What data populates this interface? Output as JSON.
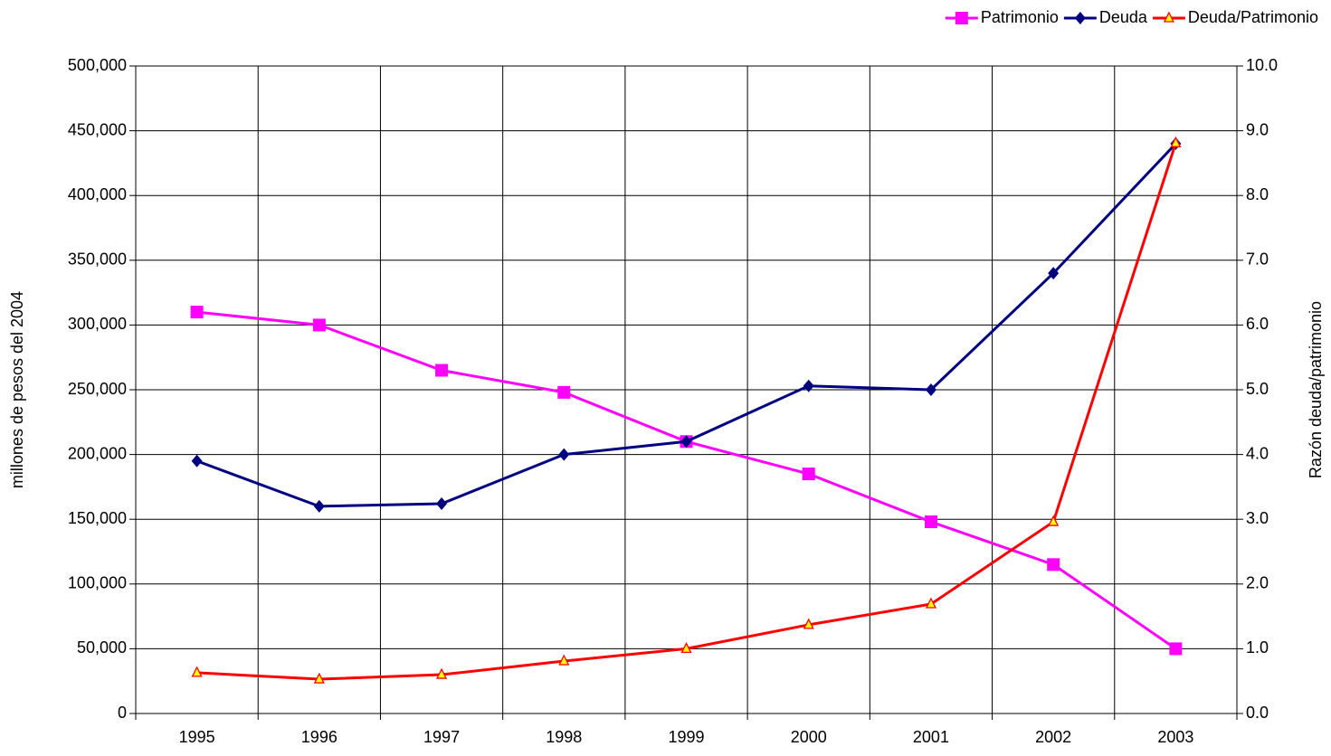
{
  "chart_data": {
    "type": "line",
    "categories": [
      "1995",
      "1996",
      "1997",
      "1998",
      "1999",
      "2000",
      "2001",
      "2002",
      "2003"
    ],
    "y_label": "millones de pesos del 2004",
    "y2_label": "Razón deuda/patrimonio",
    "ylim": [
      0,
      500000
    ],
    "yticks": [
      0,
      {
        "value": 50000,
        "label": "50,000"
      },
      {
        "value": 100000,
        "label": "100,000"
      },
      {
        "value": 150000,
        "label": "150,000"
      },
      {
        "value": 200000,
        "label": "200,000"
      },
      {
        "value": 250000,
        "label": "250,000"
      },
      {
        "value": 300000,
        "label": "300,000"
      },
      {
        "value": 350000,
        "label": "350,000"
      },
      {
        "value": 400000,
        "label": "400,000"
      },
      {
        "value": 450000,
        "label": "450,000"
      },
      {
        "value": 500000,
        "label": "500,000"
      }
    ],
    "y2lim": [
      0,
      10
    ],
    "y2ticks": [
      {
        "value": 0,
        "label": "0.0"
      },
      {
        "value": 1,
        "label": "1.0"
      },
      {
        "value": 2,
        "label": "2.0"
      },
      {
        "value": 3,
        "label": "3.0"
      },
      {
        "value": 4,
        "label": "4.0"
      },
      {
        "value": 5,
        "label": "5.0"
      },
      {
        "value": 6,
        "label": "6.0"
      },
      {
        "value": 7,
        "label": "7.0"
      },
      {
        "value": 8,
        "label": "8.0"
      },
      {
        "value": 9,
        "label": "9.0"
      },
      {
        "value": 10,
        "label": "10.0"
      }
    ],
    "grid": true,
    "legend": "top-right",
    "series": [
      {
        "name": "Patrimonio",
        "color": "#ff00ff",
        "marker": "square",
        "values": [
          310000,
          300000,
          265000,
          248000,
          210000,
          185000,
          148000,
          115000,
          50000
        ]
      },
      {
        "name": "Deuda",
        "color": "#000080",
        "marker": "diamond",
        "values": [
          195000,
          160000,
          162000,
          200000,
          210000,
          253000,
          250000,
          340000,
          440000
        ]
      },
      {
        "name": "Deuda/Patrimonio",
        "color": "#ff0000",
        "marker": "triangle",
        "axis": "y2",
        "values": [
          0.63,
          0.53,
          0.6,
          0.81,
          1.0,
          1.37,
          1.69,
          2.96,
          8.81
        ]
      }
    ]
  }
}
